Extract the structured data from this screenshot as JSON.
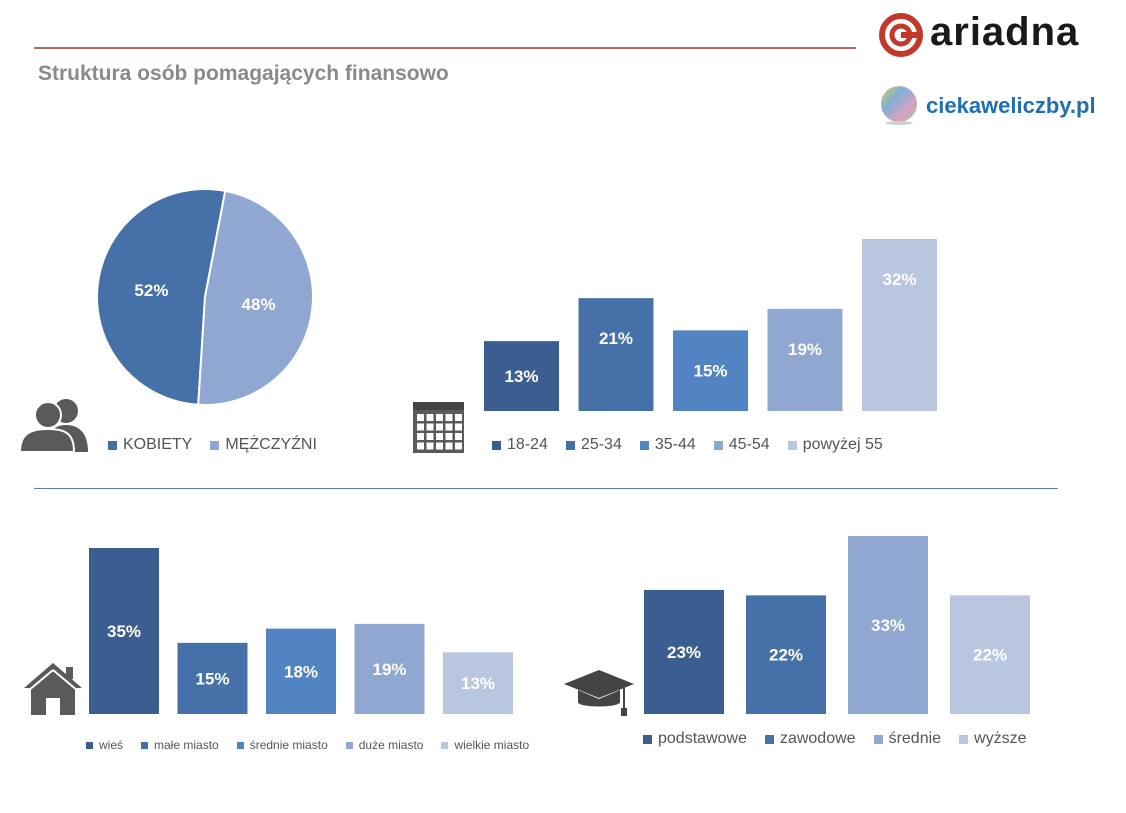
{
  "header": {
    "title": "Struktura osób pomagających finansowo",
    "brand_ariadna": "ariadna",
    "brand_ciekawe": "ciekaweliczby.pl"
  },
  "colors": {
    "c1": "#3b5d8f",
    "c2": "#4670a8",
    "c3": "#5284c3",
    "c4": "#8fa7d1",
    "c5": "#b8c6e0",
    "icon": "#5a5a5a"
  },
  "icons": [
    "people-icon",
    "calendar-icon",
    "house-icon",
    "graduation-cap-icon"
  ],
  "chart_data": [
    {
      "type": "pie",
      "categories": [
        "KOBIETY",
        "MĘŻCZYŹNI"
      ],
      "values": [
        52,
        48
      ],
      "labels": [
        "52%",
        "48%"
      ],
      "legend": "bottom"
    },
    {
      "type": "bar",
      "categories": [
        "18-24",
        "25-34",
        "35-44",
        "45-54",
        "powyżej 55"
      ],
      "values": [
        13,
        21,
        15,
        19,
        32
      ],
      "labels": [
        "13%",
        "21%",
        "15%",
        "19%",
        "32%"
      ],
      "legend": "bottom"
    },
    {
      "type": "bar",
      "categories": [
        "wieś",
        "małe miasto",
        "średnie miasto",
        "duże miasto",
        "wielkie miasto"
      ],
      "values": [
        35,
        15,
        18,
        19,
        13
      ],
      "labels": [
        "35%",
        "15%",
        "18%",
        "19%",
        "13%"
      ],
      "legend": "bottom"
    },
    {
      "type": "bar",
      "categories": [
        "podstawowe",
        "zawodowe",
        "średnie",
        "wyższe"
      ],
      "values": [
        23,
        22,
        33,
        22
      ],
      "labels": [
        "23%",
        "22%",
        "33%",
        "22%"
      ],
      "legend": "bottom"
    }
  ]
}
